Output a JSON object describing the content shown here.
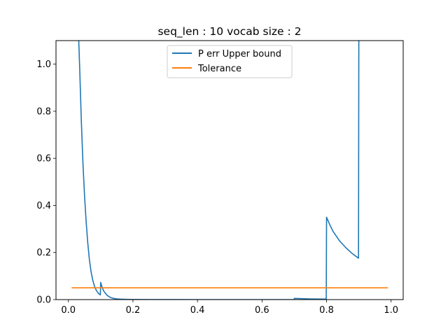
{
  "chart_data": {
    "type": "line",
    "title": "seq_len : 10 vocab size : 2",
    "xlabel": "",
    "ylabel": "",
    "xlim": [
      -0.0385,
      1.0375
    ],
    "ylim": [
      0,
      1.1
    ],
    "xticks": [
      0.0,
      0.2,
      0.4,
      0.6,
      0.8,
      1.0
    ],
    "xtick_labels": [
      "0.0",
      "0.2",
      "0.4",
      "0.6",
      "0.8",
      "1.0"
    ],
    "yticks": [
      0.0,
      0.2,
      0.4,
      0.6,
      0.8,
      1.0
    ],
    "ytick_labels": [
      "0.0",
      "0.2",
      "0.4",
      "0.6",
      "0.8",
      "1.0"
    ],
    "grid": false,
    "legend": {
      "position": "top-center"
    },
    "series": [
      {
        "name": "P err Upper bound",
        "color": "#1f77b4",
        "x": [
          0.032,
          0.035,
          0.04,
          0.045,
          0.05,
          0.055,
          0.06,
          0.065,
          0.07,
          0.075,
          0.08,
          0.085,
          0.09,
          0.095,
          0.099,
          0.1,
          0.105,
          0.11,
          0.12,
          0.13,
          0.14,
          0.15,
          0.16,
          0.18,
          0.2,
          0.25,
          0.3,
          0.4,
          0.5,
          0.6,
          0.7,
          0.7001,
          0.75,
          0.799,
          0.8,
          0.81,
          0.82,
          0.84,
          0.86,
          0.88,
          0.899,
          0.9
        ],
        "y": [
          1.1,
          0.98,
          0.76,
          0.58,
          0.44,
          0.33,
          0.24,
          0.17,
          0.12,
          0.085,
          0.06,
          0.043,
          0.032,
          0.024,
          0.02,
          0.073,
          0.05,
          0.035,
          0.018,
          0.009,
          0.005,
          0.003,
          0.002,
          0.001,
          0.0005,
          0.0002,
          0.0001,
          0.0,
          0.0,
          0.0,
          0.0,
          0.005,
          0.003,
          0.002,
          0.35,
          0.318,
          0.29,
          0.25,
          0.22,
          0.195,
          0.176,
          1.1
        ]
      },
      {
        "name": "Tolerance",
        "color": "#ff7f0e",
        "x": [
          0.01,
          0.99
        ],
        "y": [
          0.05,
          0.05
        ]
      }
    ]
  }
}
